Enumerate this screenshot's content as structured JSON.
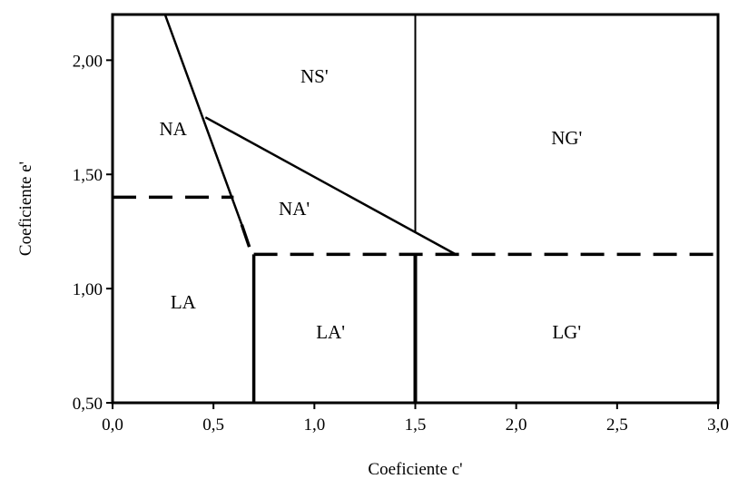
{
  "chart_data": {
    "type": "diagram",
    "xlabel": "Coeficiente c'",
    "ylabel": "Coeficiente e'",
    "xlim": [
      0.0,
      3.0
    ],
    "ylim": [
      0.5,
      2.2
    ],
    "xticks": [
      "0,0",
      "0,5",
      "1,0",
      "1,5",
      "2,0",
      "2,5",
      "3,0"
    ],
    "xtick_values": [
      0.0,
      0.5,
      1.0,
      1.5,
      2.0,
      2.5,
      3.0
    ],
    "yticks": [
      "0,50",
      "1,00",
      "1,50",
      "2,00"
    ],
    "ytick_values": [
      0.5,
      1.0,
      1.5,
      2.0
    ],
    "grid": false,
    "regions": [
      {
        "label": "NA",
        "x": 0.3,
        "y": 1.7
      },
      {
        "label": "NS'",
        "x": 1.0,
        "y": 1.93
      },
      {
        "label": "NG'",
        "x": 2.25,
        "y": 1.66
      },
      {
        "label": "NA'",
        "x": 0.9,
        "y": 1.35
      },
      {
        "label": "LA",
        "x": 0.35,
        "y": 0.94
      },
      {
        "label": "LA'",
        "x": 1.08,
        "y": 0.81
      },
      {
        "label": "LG'",
        "x": 2.25,
        "y": 0.81
      }
    ],
    "boundaries": [
      {
        "name": "steep-line",
        "style": "solid",
        "width": 2.5,
        "points": [
          [
            0.26,
            2.2
          ],
          [
            0.64,
            1.28
          ]
        ]
      },
      {
        "name": "steep-line-dashed",
        "style": "dashed",
        "width": 3.5,
        "points": [
          [
            0.64,
            1.28
          ],
          [
            0.69,
            1.15
          ]
        ]
      },
      {
        "name": "diagonal-line",
        "style": "solid",
        "width": 2.5,
        "points": [
          [
            0.46,
            1.75
          ],
          [
            1.7,
            1.15
          ]
        ]
      },
      {
        "name": "vertical-upper",
        "style": "solid",
        "width": 2,
        "points": [
          [
            1.5,
            2.2
          ],
          [
            1.5,
            1.25
          ]
        ]
      },
      {
        "name": "dashed-upper-left",
        "style": "dashed",
        "width": 3.5,
        "points": [
          [
            0.0,
            1.4
          ],
          [
            0.6,
            1.4
          ]
        ]
      },
      {
        "name": "dashed-horizontal",
        "style": "dashed",
        "width": 3.5,
        "points": [
          [
            0.7,
            1.15
          ],
          [
            3.0,
            1.15
          ]
        ]
      },
      {
        "name": "vertical-lower-left",
        "style": "solid",
        "width": 3.5,
        "points": [
          [
            0.7,
            1.15
          ],
          [
            0.7,
            0.5
          ]
        ]
      },
      {
        "name": "vertical-lower-right",
        "style": "solid",
        "width": 4,
        "points": [
          [
            1.5,
            1.15
          ],
          [
            1.5,
            0.5
          ]
        ]
      }
    ]
  }
}
